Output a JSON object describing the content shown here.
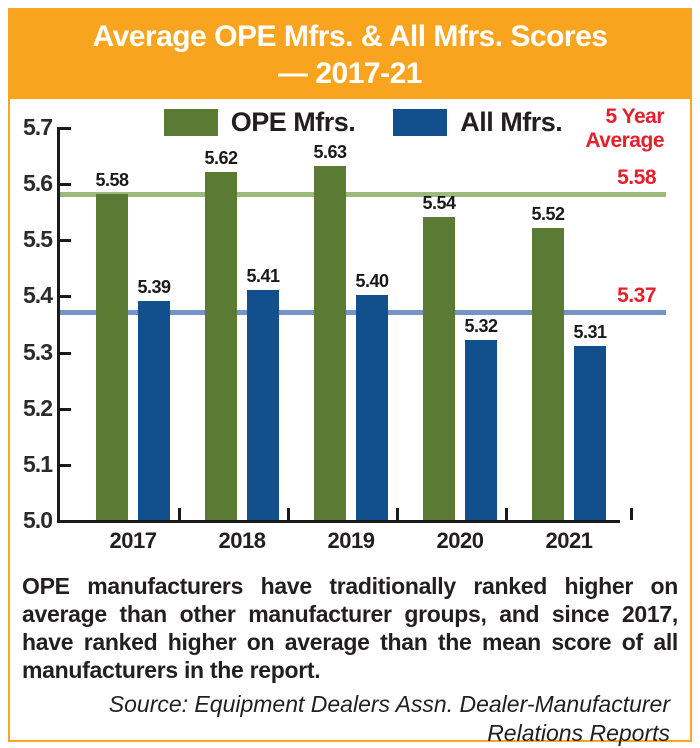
{
  "header": {
    "title_line1": "Average OPE Mfrs. & All Mfrs. Scores",
    "title_line2": "— 2017-21"
  },
  "chart_data": {
    "type": "bar",
    "title": "Average OPE Mfrs. & All Mfrs. Scores — 2017-21",
    "categories": [
      "2017",
      "2018",
      "2019",
      "2020",
      "2021"
    ],
    "series": [
      {
        "name": "OPE Mfrs.",
        "color": "#5B7B35",
        "values": [
          5.58,
          5.62,
          5.63,
          5.54,
          5.52
        ],
        "five_year_average": 5.58,
        "average_label": "5.58",
        "average_line_color": "#9DBA7D"
      },
      {
        "name": "All Mfrs.",
        "color": "#11508D",
        "values": [
          5.39,
          5.41,
          5.4,
          5.32,
          5.31
        ],
        "five_year_average": 5.37,
        "average_label": "5.37",
        "average_line_color": "#7494C8"
      }
    ],
    "ylim": [
      5.0,
      5.7
    ],
    "ytick_step": 0.1,
    "yticks": [
      "5.7",
      "5.6",
      "5.5",
      "5.4",
      "5.3",
      "5.2",
      "5.1",
      "5.0"
    ],
    "legend_position": "top",
    "grid": false,
    "annotations": {
      "five_year_average_label": "5 Year Average",
      "annotation_color": "#E4202C"
    }
  },
  "caption": {
    "text": "OPE manufacturers have traditionally ranked higher on average than other manufacturer groups, and since 2017, have ranked higher on average than the mean score of all manufacturers in the report."
  },
  "source": {
    "line1": "Source: Equipment Dealers Assn. Dealer-Manufacturer",
    "line2": "Relations Reports"
  },
  "colors": {
    "header_background": "#F8A41F",
    "frame_border": "#F5A623",
    "title_text": "#FFFFFF",
    "body_text": "#231F20"
  }
}
